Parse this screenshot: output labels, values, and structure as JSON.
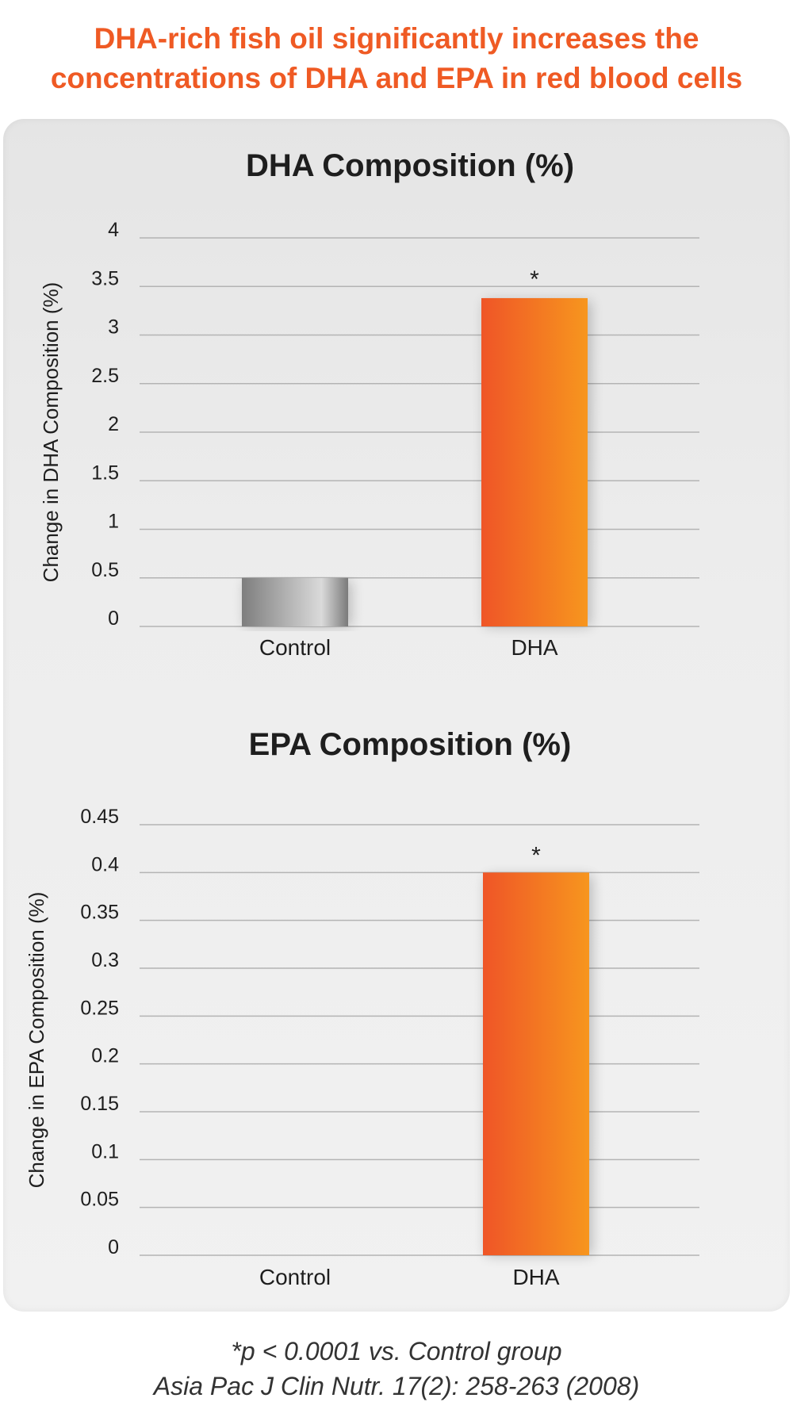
{
  "headline": {
    "line1": "DHA-rich fish oil significantly increases the",
    "line2": "concentrations of DHA and EPA in red blood cells"
  },
  "colors": {
    "headline": "#ef5a24",
    "dha_bar_start": "#f0582a",
    "dha_bar_end": "#f7941d",
    "control_bar": "#9a9a9a"
  },
  "chart_data": [
    {
      "type": "bar",
      "title": "DHA Composition (%)",
      "ylabel": "Change in DHA Composition (%)",
      "xlabel": "",
      "categories": [
        "Control",
        "DHA"
      ],
      "values": [
        0.5,
        3.38
      ],
      "ylim": [
        0,
        4
      ],
      "yticks": [
        "0",
        "0.5",
        "1",
        "1.5",
        "2",
        "2.5",
        "3",
        "3.5",
        "4"
      ],
      "annotations": [
        "",
        "*"
      ],
      "grid": true
    },
    {
      "type": "bar",
      "title": "EPA Composition (%)",
      "ylabel": "Change in EPA Composition (%)",
      "xlabel": "",
      "categories": [
        "Control",
        "DHA"
      ],
      "values": [
        0,
        0.4
      ],
      "ylim": [
        0,
        0.45
      ],
      "yticks": [
        "0",
        "0.05",
        "0.1",
        "0.15",
        "0.2",
        "0.25",
        "0.3",
        "0.35",
        "0.4",
        "0.45"
      ],
      "annotations": [
        "",
        "*"
      ],
      "grid": true
    }
  ],
  "footnotes": {
    "significance": "*p < 0.0001 vs. Control group",
    "citation": "Asia Pac J Clin Nutr. 17(2): 258-263 (2008)"
  }
}
